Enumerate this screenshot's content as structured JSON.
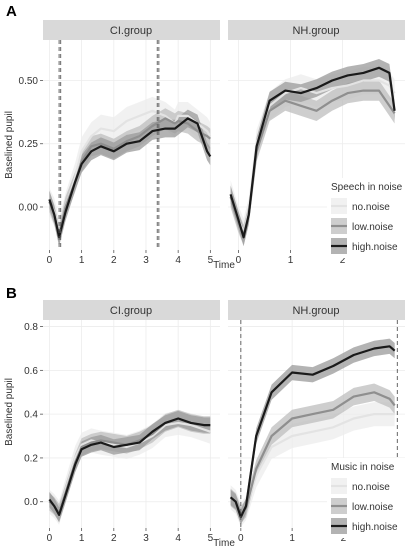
{
  "chart_data": [
    {
      "panel_letter": "A",
      "type": "line",
      "ylabel": "Baselined pupil",
      "xlabel": "Time",
      "ylim": [
        -0.17,
        0.66
      ],
      "yticks": [
        0.0,
        0.25,
        0.5
      ],
      "ytick_labels": [
        "0.00",
        "0.25",
        "0.50"
      ],
      "legend": {
        "title": "Speech in noise",
        "placement": "right",
        "entries": [
          "no.noise",
          "low.noise",
          "high.noise"
        ]
      },
      "facets": [
        {
          "strip": "CI.group",
          "xlim": [
            -0.2,
            5.3
          ],
          "xticks": [
            0,
            1,
            2,
            3,
            4,
            5
          ],
          "xtick_labels": [
            "0",
            "1",
            "2",
            "3",
            "4",
            "5"
          ],
          "vlines": [
            0.3,
            0.35,
            3.35,
            3.4
          ],
          "series": [
            {
              "name": "no.noise",
              "x": [
                0.0,
                0.15,
                0.3,
                0.5,
                0.8,
                1.0,
                1.3,
                1.6,
                2.0,
                2.4,
                2.8,
                3.2,
                3.6,
                3.9,
                4.0,
                4.3,
                4.6,
                4.9,
                5.0
              ],
              "y": [
                0.02,
                -0.02,
                -0.1,
                0.0,
                0.12,
                0.22,
                0.28,
                0.31,
                0.3,
                0.34,
                0.36,
                0.38,
                0.36,
                0.33,
                0.36,
                0.36,
                0.33,
                0.3,
                0.28
              ]
            },
            {
              "name": "low.noise",
              "x": [
                0.0,
                0.15,
                0.3,
                0.5,
                0.8,
                1.0,
                1.3,
                1.6,
                2.0,
                2.4,
                2.8,
                3.2,
                3.6,
                3.9,
                4.0,
                4.3,
                4.6,
                4.9,
                5.0
              ],
              "y": [
                0.02,
                -0.03,
                -0.11,
                0.0,
                0.1,
                0.18,
                0.24,
                0.25,
                0.23,
                0.26,
                0.28,
                0.32,
                0.35,
                0.33,
                0.34,
                0.33,
                0.3,
                0.28,
                0.27
              ]
            },
            {
              "name": "high.noise",
              "x": [
                0.0,
                0.15,
                0.3,
                0.5,
                0.8,
                1.0,
                1.3,
                1.6,
                2.0,
                2.4,
                2.8,
                3.2,
                3.6,
                3.9,
                4.0,
                4.3,
                4.6,
                4.9,
                5.0
              ],
              "y": [
                0.03,
                -0.03,
                -0.12,
                -0.02,
                0.1,
                0.17,
                0.22,
                0.24,
                0.22,
                0.25,
                0.26,
                0.3,
                0.31,
                0.31,
                0.32,
                0.35,
                0.33,
                0.22,
                0.2
              ]
            }
          ]
        },
        {
          "strip": "NH.group",
          "xlim": [
            -0.2,
            3.2
          ],
          "xticks": [
            0,
            1,
            2
          ],
          "xtick_labels": [
            "0",
            "1",
            "2"
          ],
          "vlines": [],
          "series": [
            {
              "name": "no.noise",
              "x": [
                -0.15,
                0.0,
                0.1,
                0.2,
                0.35,
                0.6,
                0.9,
                1.2,
                1.5,
                1.8,
                2.1,
                2.4,
                2.7,
                2.9,
                3.0
              ],
              "y": [
                0.05,
                -0.05,
                -0.1,
                -0.02,
                0.25,
                0.4,
                0.45,
                0.47,
                0.45,
                0.47,
                0.48,
                0.5,
                0.5,
                0.48,
                0.45
              ]
            },
            {
              "name": "low.noise",
              "x": [
                -0.15,
                0.0,
                0.1,
                0.2,
                0.35,
                0.6,
                0.9,
                1.2,
                1.5,
                1.8,
                2.1,
                2.4,
                2.7,
                2.9,
                3.0
              ],
              "y": [
                0.04,
                -0.06,
                -0.11,
                -0.03,
                0.22,
                0.38,
                0.42,
                0.4,
                0.38,
                0.42,
                0.45,
                0.46,
                0.46,
                0.4,
                0.37
              ]
            },
            {
              "name": "high.noise",
              "x": [
                -0.15,
                0.0,
                0.1,
                0.2,
                0.35,
                0.6,
                0.9,
                1.2,
                1.5,
                1.8,
                2.1,
                2.4,
                2.7,
                2.9,
                3.0
              ],
              "y": [
                0.05,
                -0.05,
                -0.12,
                -0.03,
                0.24,
                0.42,
                0.46,
                0.45,
                0.47,
                0.5,
                0.52,
                0.53,
                0.55,
                0.53,
                0.38
              ]
            }
          ]
        }
      ]
    },
    {
      "panel_letter": "B",
      "type": "line",
      "ylabel": "Baselined pupil",
      "xlabel": "Time",
      "ylim": [
        -0.12,
        0.83
      ],
      "yticks": [
        0.0,
        0.2,
        0.4,
        0.6,
        0.8
      ],
      "ytick_labels": [
        "0.0",
        "0.2",
        "0.4",
        "0.6",
        "0.8"
      ],
      "legend": {
        "title": "Music in noise",
        "placement": "right",
        "entries": [
          "no.noise",
          "low.noise",
          "high.noise"
        ]
      },
      "facets": [
        {
          "strip": "CI.group",
          "xlim": [
            -0.2,
            5.3
          ],
          "xticks": [
            0,
            1,
            2,
            3,
            4,
            5
          ],
          "xtick_labels": [
            "0",
            "1",
            "2",
            "3",
            "4",
            "5"
          ],
          "vlines": [],
          "series": [
            {
              "name": "no.noise",
              "x": [
                0.0,
                0.15,
                0.3,
                0.5,
                0.8,
                1.0,
                1.3,
                1.6,
                2.0,
                2.4,
                2.8,
                3.2,
                3.6,
                4.0,
                4.4,
                4.8,
                5.0
              ],
              "y": [
                0.0,
                -0.02,
                -0.05,
                0.05,
                0.2,
                0.26,
                0.28,
                0.27,
                0.26,
                0.25,
                0.27,
                0.3,
                0.35,
                0.36,
                0.35,
                0.33,
                0.32
              ]
            },
            {
              "name": "low.noise",
              "x": [
                0.0,
                0.15,
                0.3,
                0.5,
                0.8,
                1.0,
                1.3,
                1.6,
                2.0,
                2.4,
                2.8,
                3.2,
                3.6,
                4.0,
                4.4,
                4.8,
                5.0
              ],
              "y": [
                0.0,
                -0.02,
                -0.05,
                0.04,
                0.18,
                0.25,
                0.27,
                0.28,
                0.27,
                0.26,
                0.28,
                0.31,
                0.36,
                0.38,
                0.36,
                0.35,
                0.35
              ]
            },
            {
              "name": "high.noise",
              "x": [
                0.0,
                0.15,
                0.3,
                0.5,
                0.8,
                1.0,
                1.3,
                1.6,
                2.0,
                2.4,
                2.8,
                3.2,
                3.6,
                4.0,
                4.4,
                4.8,
                5.0
              ],
              "y": [
                0.01,
                -0.02,
                -0.06,
                0.03,
                0.17,
                0.24,
                0.26,
                0.27,
                0.25,
                0.26,
                0.27,
                0.32,
                0.36,
                0.38,
                0.36,
                0.35,
                0.35
              ]
            }
          ]
        },
        {
          "strip": "NH.group",
          "xlim": [
            -0.25,
            3.2
          ],
          "xticks": [
            0,
            1,
            2
          ],
          "xtick_labels": [
            "0",
            "1",
            "2"
          ],
          "vlines": [
            0.0,
            3.05
          ],
          "series": [
            {
              "name": "no.noise",
              "x": [
                -0.2,
                -0.1,
                0.0,
                0.1,
                0.3,
                0.6,
                1.0,
                1.4,
                1.8,
                2.2,
                2.6,
                2.9,
                3.0
              ],
              "y": [
                0.02,
                0.0,
                -0.06,
                -0.03,
                0.12,
                0.25,
                0.3,
                0.32,
                0.34,
                0.38,
                0.4,
                0.4,
                0.4
              ]
            },
            {
              "name": "low.noise",
              "x": [
                -0.2,
                -0.1,
                0.0,
                0.1,
                0.3,
                0.6,
                1.0,
                1.4,
                1.8,
                2.2,
                2.6,
                2.9,
                3.0
              ],
              "y": [
                0.02,
                0.0,
                -0.06,
                -0.03,
                0.15,
                0.3,
                0.38,
                0.4,
                0.42,
                0.48,
                0.5,
                0.47,
                0.44
              ]
            },
            {
              "name": "high.noise",
              "x": [
                -0.2,
                -0.1,
                0.0,
                0.1,
                0.3,
                0.6,
                1.0,
                1.4,
                1.8,
                2.2,
                2.6,
                2.9,
                3.0
              ],
              "y": [
                0.02,
                0.0,
                -0.07,
                -0.02,
                0.3,
                0.5,
                0.59,
                0.58,
                0.62,
                0.67,
                0.7,
                0.71,
                0.69
              ]
            }
          ]
        }
      ]
    }
  ],
  "series_colors": {
    "no.noise": "#e3e3e3",
    "low.noise": "#8f8f8f",
    "high.noise": "#1a1a1a"
  },
  "band_colors": {
    "no.noise": "#ececec",
    "low.noise": "#bdbdbd",
    "high.noise": "#9a9a9a"
  },
  "strip_fill": "#d9d9d9"
}
